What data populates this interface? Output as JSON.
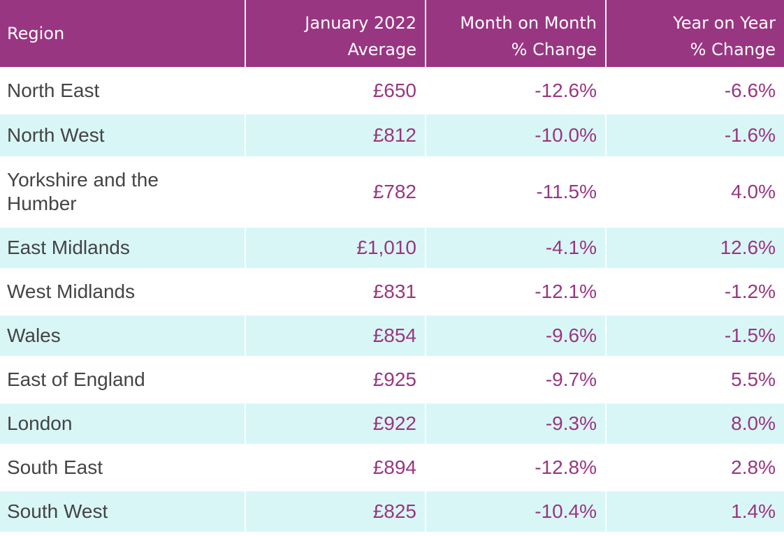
{
  "table": {
    "headers": {
      "region": "Region",
      "average": "January 2022\nAverage",
      "mom": "Month on Month\n% Change",
      "yoy": "Year on Year\n% Change"
    },
    "rows": [
      {
        "region": "North East",
        "average": "£650",
        "mom": "-12.6%",
        "yoy": "-6.6%"
      },
      {
        "region": "North West",
        "average": "£812",
        "mom": "-10.0%",
        "yoy": "-1.6%"
      },
      {
        "region": "Yorkshire and the Humber",
        "average": "£782",
        "mom": "-11.5%",
        "yoy": "4.0%"
      },
      {
        "region": "East Midlands",
        "average": "£1,010",
        "mom": "-4.1%",
        "yoy": "12.6%"
      },
      {
        "region": "West Midlands",
        "average": "£831",
        "mom": "-12.1%",
        "yoy": "-1.2%"
      },
      {
        "region": "Wales",
        "average": "£854",
        "mom": "-9.6%",
        "yoy": "-1.5%"
      },
      {
        "region": "East of England",
        "average": "£925",
        "mom": "-9.7%",
        "yoy": "5.5%"
      },
      {
        "region": "London",
        "average": "£922",
        "mom": "-9.3%",
        "yoy": "8.0%"
      },
      {
        "region": "South East",
        "average": "£894",
        "mom": "-12.8%",
        "yoy": "2.8%"
      },
      {
        "region": "South West",
        "average": "£825",
        "mom": "-10.4%",
        "yoy": "1.4%"
      }
    ]
  },
  "colors": {
    "header_bg": "#993681",
    "header_text": "#ffffff",
    "alt_row_bg": "#d9f6f7",
    "value_text": "#993681",
    "region_text": "#444444"
  }
}
